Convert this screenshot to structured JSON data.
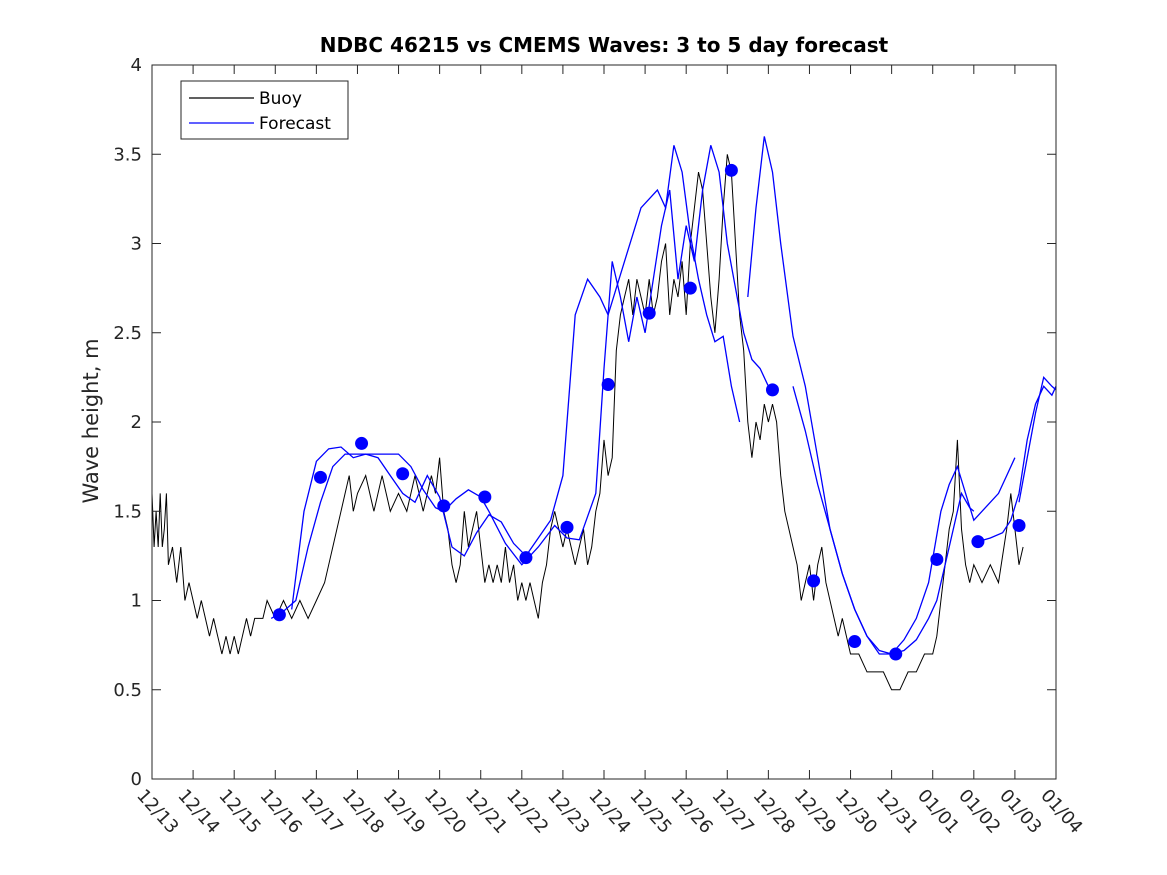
{
  "chart_data": {
    "type": "line",
    "title": "NDBC 46215 vs CMEMS Waves: 3 to 5 day forecast",
    "xlabel": "",
    "ylabel": "Wave height, m",
    "xlim": [
      0,
      22
    ],
    "ylim": [
      0,
      4
    ],
    "x_ticks": [
      0,
      1,
      2,
      3,
      4,
      5,
      6,
      7,
      8,
      9,
      10,
      11,
      12,
      13,
      14,
      15,
      16,
      17,
      18,
      19,
      20,
      21,
      22
    ],
    "x_tick_labels": [
      "12/13",
      "12/14",
      "12/15",
      "12/16",
      "12/17",
      "12/18",
      "12/19",
      "12/20",
      "12/21",
      "12/22",
      "12/23",
      "12/24",
      "12/25",
      "12/26",
      "12/27",
      "12/28",
      "12/29",
      "12/30",
      "12/31",
      "01/01",
      "01/02",
      "01/03",
      "01/04"
    ],
    "y_ticks": [
      0,
      0.5,
      1,
      1.5,
      2,
      2.5,
      3,
      3.5,
      4
    ],
    "y_tick_labels": [
      "0",
      "0.5",
      "1",
      "1.5",
      "2",
      "2.5",
      "3",
      "3.5",
      "4"
    ],
    "grid": false,
    "legend": {
      "position": "top-left",
      "entries": [
        "Buoy",
        "Forecast"
      ]
    },
    "colors": {
      "buoy": "#000000",
      "forecast": "#0000ff"
    },
    "series": [
      {
        "name": "Buoy",
        "x": [
          0,
          0.05,
          0.1,
          0.15,
          0.2,
          0.25,
          0.3,
          0.35,
          0.4,
          0.5,
          0.6,
          0.7,
          0.8,
          0.9,
          1.0,
          1.1,
          1.2,
          1.3,
          1.4,
          1.5,
          1.6,
          1.7,
          1.8,
          1.9,
          2.0,
          2.1,
          2.2,
          2.3,
          2.4,
          2.5,
          2.6,
          2.7,
          2.8,
          3.0,
          3.2,
          3.4,
          3.6,
          3.8,
          4.0,
          4.2,
          4.3,
          4.4,
          4.5,
          4.6,
          4.7,
          4.8,
          4.9,
          5.0,
          5.2,
          5.4,
          5.6,
          5.8,
          6.0,
          6.2,
          6.4,
          6.6,
          6.8,
          6.9,
          7.0,
          7.1,
          7.2,
          7.3,
          7.4,
          7.5,
          7.6,
          7.7,
          7.8,
          7.9,
          8.0,
          8.1,
          8.2,
          8.3,
          8.4,
          8.5,
          8.6,
          8.7,
          8.8,
          8.9,
          9.0,
          9.1,
          9.2,
          9.3,
          9.4,
          9.5,
          9.6,
          9.7,
          9.8,
          9.9,
          10.0,
          10.1,
          10.2,
          10.3,
          10.4,
          10.5,
          10.6,
          10.7,
          10.8,
          10.9,
          11.0,
          11.1,
          11.2,
          11.3,
          11.4,
          11.5,
          11.6,
          11.7,
          11.8,
          11.9,
          12.0,
          12.1,
          12.2,
          12.3,
          12.4,
          12.5,
          12.6,
          12.7,
          12.8,
          12.9,
          13.0,
          13.1,
          13.2,
          13.3,
          13.4,
          13.5,
          13.6,
          13.7,
          13.8,
          13.9,
          14.0,
          14.1,
          14.2,
          14.3,
          14.4,
          14.5,
          14.6,
          14.7,
          14.8,
          14.9,
          15.0,
          15.1,
          15.2,
          15.3,
          15.4,
          15.5,
          15.6,
          15.7,
          15.8,
          15.9,
          16.0,
          16.1,
          16.2,
          16.3,
          16.4,
          16.5,
          16.6,
          16.7,
          16.8,
          16.9,
          17.0,
          17.2,
          17.4,
          17.6,
          17.8,
          18.0,
          18.2,
          18.4,
          18.6,
          18.8,
          19.0,
          19.1,
          19.2,
          19.3,
          19.4,
          19.5,
          19.6,
          19.7,
          19.8,
          19.9,
          20.0,
          20.2,
          20.4,
          20.6,
          20.8,
          20.9,
          21.0,
          21.1,
          21.2
        ],
        "values": [
          1.6,
          1.3,
          1.5,
          1.3,
          1.6,
          1.3,
          1.4,
          1.6,
          1.2,
          1.3,
          1.1,
          1.3,
          1.0,
          1.1,
          1.0,
          0.9,
          1.0,
          0.9,
          0.8,
          0.9,
          0.8,
          0.7,
          0.8,
          0.7,
          0.8,
          0.7,
          0.8,
          0.9,
          0.8,
          0.9,
          0.9,
          0.9,
          1.0,
          0.9,
          1.0,
          0.9,
          1.0,
          0.9,
          1.0,
          1.1,
          1.2,
          1.3,
          1.4,
          1.5,
          1.6,
          1.7,
          1.5,
          1.6,
          1.7,
          1.5,
          1.7,
          1.5,
          1.6,
          1.5,
          1.7,
          1.5,
          1.7,
          1.6,
          1.8,
          1.5,
          1.4,
          1.2,
          1.1,
          1.2,
          1.5,
          1.3,
          1.4,
          1.5,
          1.3,
          1.1,
          1.2,
          1.1,
          1.2,
          1.1,
          1.3,
          1.1,
          1.2,
          1.0,
          1.1,
          1.0,
          1.1,
          1.0,
          0.9,
          1.1,
          1.2,
          1.4,
          1.5,
          1.4,
          1.3,
          1.4,
          1.3,
          1.2,
          1.3,
          1.4,
          1.2,
          1.3,
          1.5,
          1.6,
          1.9,
          1.7,
          1.8,
          2.4,
          2.6,
          2.7,
          2.8,
          2.6,
          2.8,
          2.7,
          2.6,
          2.8,
          2.6,
          2.7,
          2.9,
          3.0,
          2.6,
          2.8,
          2.7,
          2.9,
          2.6,
          3.0,
          3.2,
          3.4,
          3.3,
          3.0,
          2.7,
          2.5,
          2.8,
          3.2,
          3.5,
          3.4,
          3.0,
          2.6,
          2.4,
          2.0,
          1.8,
          2.0,
          1.9,
          2.1,
          2.0,
          2.1,
          2.0,
          1.7,
          1.5,
          1.4,
          1.3,
          1.2,
          1.0,
          1.1,
          1.2,
          1.0,
          1.2,
          1.3,
          1.1,
          1.0,
          0.9,
          0.8,
          0.9,
          0.8,
          0.7,
          0.7,
          0.6,
          0.6,
          0.6,
          0.5,
          0.5,
          0.6,
          0.6,
          0.7,
          0.7,
          0.8,
          1.0,
          1.2,
          1.4,
          1.5,
          1.9,
          1.4,
          1.2,
          1.1,
          1.2,
          1.1,
          1.2,
          1.1,
          1.4,
          1.6,
          1.4,
          1.2,
          1.3
        ]
      },
      {
        "name": "Forecast",
        "segments": [
          {
            "x": [
              2.9,
              3.2,
              3.5,
              3.8,
              4.1,
              4.4,
              4.7,
              5.0,
              5.3,
              5.6,
              6.0,
              6.3,
              6.6,
              6.9,
              7.1,
              7.4,
              7.7,
              8.0,
              8.2,
              8.6,
              9.0,
              9.4,
              9.8,
              10.1,
              10.4,
              10.8,
              11.0,
              11.2,
              11.4,
              11.6,
              11.8,
              12.0,
              12.2,
              12.4,
              12.6,
              12.8,
              13.0,
              13.2,
              13.4,
              13.6,
              13.8,
              14.0,
              14.2,
              14.4,
              14.6,
              14.8,
              15.0
            ],
            "values": [
              0.9,
              0.94,
              1.0,
              1.3,
              1.55,
              1.75,
              1.82,
              1.82,
              1.82,
              1.82,
              1.82,
              1.75,
              1.62,
              1.52,
              1.5,
              1.57,
              1.62,
              1.58,
              1.5,
              1.32,
              1.2,
              1.3,
              1.42,
              1.35,
              1.34,
              1.6,
              2.3,
              2.9,
              2.7,
              2.45,
              2.7,
              2.5,
              2.8,
              3.1,
              3.3,
              2.8,
              3.1,
              2.9,
              3.3,
              3.55,
              3.4,
              3.0,
              2.75,
              2.5,
              2.35,
              2.3,
              2.2
            ]
          },
          {
            "x": [
              3.4,
              3.7,
              4.0,
              4.3,
              4.6,
              4.9,
              5.2,
              5.5,
              5.8,
              6.1,
              6.4,
              6.7,
              7.0,
              7.3,
              7.6,
              7.9,
              8.2,
              8.5,
              8.8,
              9.1,
              9.4,
              9.7,
              10.0,
              10.3,
              10.6,
              10.9,
              11.1,
              11.3,
              11.5,
              11.7,
              11.9,
              12.1,
              12.3,
              12.5,
              12.7,
              12.9,
              13.1,
              13.3,
              13.5,
              13.7,
              13.9,
              14.1,
              14.3
            ],
            "values": [
              0.95,
              1.5,
              1.78,
              1.85,
              1.86,
              1.8,
              1.82,
              1.8,
              1.7,
              1.6,
              1.55,
              1.7,
              1.58,
              1.3,
              1.25,
              1.38,
              1.48,
              1.44,
              1.32,
              1.25,
              1.35,
              1.45,
              1.7,
              2.6,
              2.8,
              2.7,
              2.6,
              2.75,
              2.9,
              3.05,
              3.2,
              3.25,
              3.3,
              3.2,
              3.55,
              3.4,
              3.05,
              2.8,
              2.6,
              2.45,
              2.48,
              2.2,
              2.0
            ]
          },
          {
            "x": [
              14.5,
              14.7,
              14.9,
              15.1,
              15.3,
              15.6,
              15.9,
              16.2,
              16.5,
              16.8,
              17.1,
              17.4,
              17.7,
              18.0,
              18.3,
              18.6,
              18.9,
              19.1,
              19.3,
              19.5,
              19.7,
              19.9,
              20.0
            ],
            "values": [
              2.7,
              3.2,
              3.6,
              3.4,
              3.0,
              2.48,
              2.2,
              1.8,
              1.4,
              1.15,
              0.95,
              0.8,
              0.72,
              0.7,
              0.72,
              0.78,
              0.9,
              1.0,
              1.2,
              1.4,
              1.6,
              1.52,
              1.5
            ]
          },
          {
            "x": [
              15.6,
              15.9,
              16.2,
              16.5,
              16.8,
              17.1,
              17.4,
              17.7,
              18.0,
              18.3,
              18.6,
              18.9,
              19.2,
              19.4,
              19.6,
              19.8,
              20.0,
              20.2,
              20.4,
              20.6,
              20.8,
              21.0
            ],
            "values": [
              2.2,
              1.95,
              1.65,
              1.4,
              1.15,
              0.95,
              0.8,
              0.7,
              0.7,
              0.78,
              0.9,
              1.1,
              1.5,
              1.65,
              1.75,
              1.6,
              1.45,
              1.5,
              1.55,
              1.6,
              1.7,
              1.8
            ]
          },
          {
            "x": [
              20.1,
              20.4,
              20.7,
              20.9,
              21.1,
              21.3,
              21.5,
              21.7,
              21.9,
              22.0
            ],
            "values": [
              1.33,
              1.35,
              1.38,
              1.45,
              1.6,
              1.9,
              2.1,
              2.2,
              2.15,
              2.2
            ]
          },
          {
            "x": [
              21.1,
              21.3,
              21.5,
              21.7,
              21.9,
              22.0
            ],
            "values": [
              1.55,
              1.8,
              2.05,
              2.25,
              2.2,
              2.18
            ]
          }
        ],
        "markers": {
          "x": [
            3.1,
            4.1,
            5.1,
            6.1,
            7.1,
            8.1,
            9.1,
            10.1,
            11.1,
            12.1,
            13.1,
            14.1,
            15.1,
            16.1,
            17.1,
            18.1,
            19.1,
            20.1,
            21.1
          ],
          "values": [
            0.92,
            1.69,
            1.88,
            1.71,
            1.53,
            1.58,
            1.24,
            1.41,
            2.21,
            2.61,
            2.75,
            3.41,
            2.18,
            1.11,
            0.77,
            0.7,
            1.23,
            1.33,
            1.42
          ]
        }
      }
    ]
  }
}
